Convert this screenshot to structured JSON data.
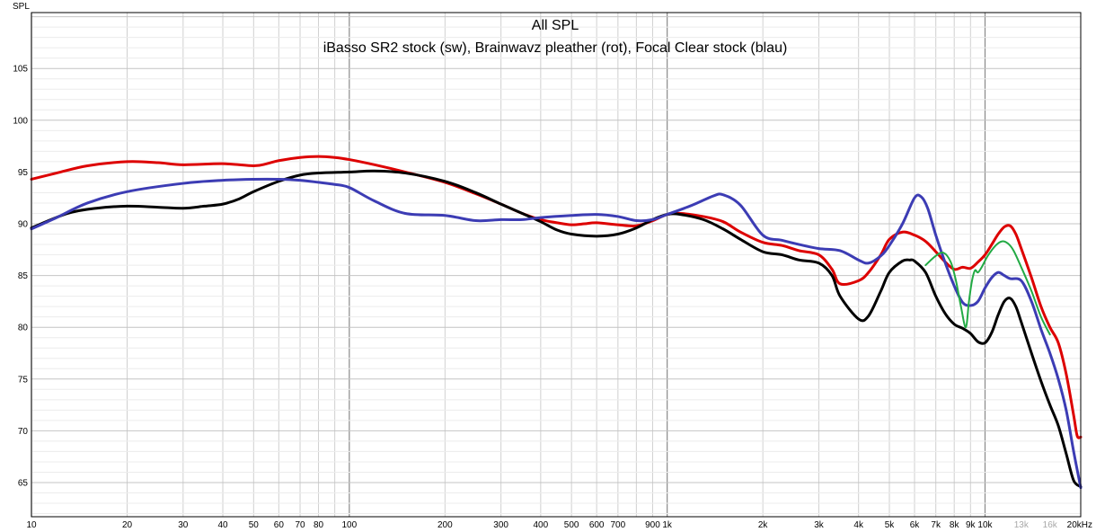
{
  "chart_data": {
    "type": "line",
    "title": "All SPL",
    "subtitle": "iBasso SR2 stock (sw), Brainwavz pleather (rot), Focal Clear stock (blau)",
    "ylabel": "SPL",
    "xlabel": "",
    "x_scale": "log",
    "xlim": [
      10,
      20000
    ],
    "ylim": [
      61.7,
      110.4
    ],
    "grid": true,
    "legend": "none",
    "y_ticks": [
      65,
      70,
      75,
      80,
      85,
      90,
      95,
      100,
      105
    ],
    "x_ticks": [
      {
        "value": 10,
        "label": "10"
      },
      {
        "value": 20,
        "label": "20"
      },
      {
        "value": 30,
        "label": "30"
      },
      {
        "value": 40,
        "label": "40"
      },
      {
        "value": 50,
        "label": "50"
      },
      {
        "value": 60,
        "label": "60"
      },
      {
        "value": 70,
        "label": "70"
      },
      {
        "value": 80,
        "label": "80"
      },
      {
        "value": 100,
        "label": "100"
      },
      {
        "value": 200,
        "label": "200"
      },
      {
        "value": 300,
        "label": "300"
      },
      {
        "value": 400,
        "label": "400"
      },
      {
        "value": 500,
        "label": "500"
      },
      {
        "value": 600,
        "label": "600"
      },
      {
        "value": 700,
        "label": "700"
      },
      {
        "value": 900,
        "label": "900"
      },
      {
        "value": 1000,
        "label": "1k"
      },
      {
        "value": 2000,
        "label": "2k"
      },
      {
        "value": 3000,
        "label": "3k"
      },
      {
        "value": 4000,
        "label": "4k"
      },
      {
        "value": 5000,
        "label": "5k"
      },
      {
        "value": 6000,
        "label": "6k"
      },
      {
        "value": 7000,
        "label": "7k"
      },
      {
        "value": 8000,
        "label": "8k"
      },
      {
        "value": 9000,
        "label": "9k"
      },
      {
        "value": 10000,
        "label": "10k"
      },
      {
        "value": 13000,
        "label": "13k",
        "faded": true
      },
      {
        "value": 16000,
        "label": "16k",
        "faded": true
      },
      {
        "value": 20000,
        "label": "20kHz"
      }
    ],
    "series": [
      {
        "color": "#dd0000",
        "points": [
          [
            10,
            94.3
          ],
          [
            12,
            94.9
          ],
          [
            15,
            95.6
          ],
          [
            20,
            96.0
          ],
          [
            25,
            95.9
          ],
          [
            30,
            95.7
          ],
          [
            40,
            95.8
          ],
          [
            50,
            95.6
          ],
          [
            55,
            95.8
          ],
          [
            60,
            96.1
          ],
          [
            70,
            96.4
          ],
          [
            80,
            96.5
          ],
          [
            90,
            96.4
          ],
          [
            100,
            96.2
          ],
          [
            120,
            95.7
          ],
          [
            150,
            95.0
          ],
          [
            200,
            94.0
          ],
          [
            250,
            92.9
          ],
          [
            300,
            91.9
          ],
          [
            350,
            91.0
          ],
          [
            400,
            90.4
          ],
          [
            450,
            90.1
          ],
          [
            500,
            89.9
          ],
          [
            550,
            90.0
          ],
          [
            600,
            90.1
          ],
          [
            700,
            89.9
          ],
          [
            800,
            89.8
          ],
          [
            900,
            90.3
          ],
          [
            1000,
            90.9
          ],
          [
            1100,
            91.0
          ],
          [
            1300,
            90.7
          ],
          [
            1500,
            90.2
          ],
          [
            1700,
            89.2
          ],
          [
            2000,
            88.2
          ],
          [
            2300,
            87.9
          ],
          [
            2600,
            87.4
          ],
          [
            3000,
            87.0
          ],
          [
            3300,
            85.6
          ],
          [
            3500,
            84.2
          ],
          [
            4000,
            84.5
          ],
          [
            4300,
            85.3
          ],
          [
            4700,
            87.0
          ],
          [
            5000,
            88.5
          ],
          [
            5500,
            89.2
          ],
          [
            6000,
            88.9
          ],
          [
            6500,
            88.3
          ],
          [
            7000,
            87.3
          ],
          [
            7500,
            86.3
          ],
          [
            8000,
            85.6
          ],
          [
            8500,
            85.8
          ],
          [
            9000,
            85.7
          ],
          [
            9500,
            86.3
          ],
          [
            10000,
            87.0
          ],
          [
            10500,
            88.0
          ],
          [
            11000,
            89.0
          ],
          [
            11500,
            89.7
          ],
          [
            12000,
            89.8
          ],
          [
            12500,
            89.0
          ],
          [
            13000,
            87.6
          ],
          [
            14000,
            84.8
          ],
          [
            15000,
            82.0
          ],
          [
            16000,
            80.0
          ],
          [
            17000,
            78.5
          ],
          [
            18000,
            75.5
          ],
          [
            19000,
            71.5
          ],
          [
            19500,
            69.5
          ],
          [
            20000,
            69.4
          ]
        ]
      },
      {
        "color": "#000000",
        "points": [
          [
            10,
            89.6
          ],
          [
            13,
            91.0
          ],
          [
            16,
            91.5
          ],
          [
            20,
            91.7
          ],
          [
            25,
            91.6
          ],
          [
            30,
            91.5
          ],
          [
            35,
            91.7
          ],
          [
            40,
            91.9
          ],
          [
            45,
            92.4
          ],
          [
            50,
            93.1
          ],
          [
            60,
            94.1
          ],
          [
            70,
            94.7
          ],
          [
            80,
            94.9
          ],
          [
            100,
            95.0
          ],
          [
            120,
            95.1
          ],
          [
            150,
            94.9
          ],
          [
            200,
            94.1
          ],
          [
            250,
            93.0
          ],
          [
            300,
            91.9
          ],
          [
            350,
            91.0
          ],
          [
            400,
            90.2
          ],
          [
            450,
            89.4
          ],
          [
            500,
            89.0
          ],
          [
            600,
            88.8
          ],
          [
            700,
            89.0
          ],
          [
            800,
            89.6
          ],
          [
            900,
            90.4
          ],
          [
            1000,
            90.9
          ],
          [
            1100,
            90.9
          ],
          [
            1300,
            90.4
          ],
          [
            1500,
            89.5
          ],
          [
            1700,
            88.5
          ],
          [
            2000,
            87.3
          ],
          [
            2300,
            87.0
          ],
          [
            2600,
            86.5
          ],
          [
            3000,
            86.2
          ],
          [
            3300,
            85.0
          ],
          [
            3500,
            83.0
          ],
          [
            4000,
            80.8
          ],
          [
            4300,
            81.1
          ],
          [
            4700,
            83.5
          ],
          [
            5000,
            85.3
          ],
          [
            5500,
            86.4
          ],
          [
            5800,
            86.5
          ],
          [
            6000,
            86.4
          ],
          [
            6500,
            85.3
          ],
          [
            7000,
            83.0
          ],
          [
            7500,
            81.3
          ],
          [
            8000,
            80.3
          ],
          [
            8500,
            79.9
          ],
          [
            9000,
            79.4
          ],
          [
            9500,
            78.6
          ],
          [
            10000,
            78.5
          ],
          [
            10500,
            79.5
          ],
          [
            11000,
            81.2
          ],
          [
            11500,
            82.5
          ],
          [
            12000,
            82.8
          ],
          [
            12500,
            82.0
          ],
          [
            13000,
            80.5
          ],
          [
            14000,
            77.5
          ],
          [
            15000,
            74.8
          ],
          [
            16000,
            72.5
          ],
          [
            17000,
            70.5
          ],
          [
            18000,
            67.8
          ],
          [
            19000,
            65.2
          ],
          [
            20000,
            64.6
          ]
        ]
      },
      {
        "color": "#3c3cb4",
        "points": [
          [
            10,
            89.5
          ],
          [
            12,
            90.6
          ],
          [
            15,
            92.0
          ],
          [
            20,
            93.1
          ],
          [
            30,
            93.9
          ],
          [
            40,
            94.2
          ],
          [
            50,
            94.3
          ],
          [
            60,
            94.3
          ],
          [
            70,
            94.2
          ],
          [
            80,
            94.0
          ],
          [
            90,
            93.8
          ],
          [
            100,
            93.5
          ],
          [
            120,
            92.2
          ],
          [
            150,
            91.0
          ],
          [
            200,
            90.8
          ],
          [
            250,
            90.3
          ],
          [
            300,
            90.4
          ],
          [
            350,
            90.4
          ],
          [
            400,
            90.6
          ],
          [
            500,
            90.8
          ],
          [
            600,
            90.9
          ],
          [
            700,
            90.7
          ],
          [
            800,
            90.3
          ],
          [
            900,
            90.4
          ],
          [
            1000,
            90.9
          ],
          [
            1200,
            91.8
          ],
          [
            1400,
            92.7
          ],
          [
            1500,
            92.8
          ],
          [
            1700,
            91.8
          ],
          [
            2000,
            88.9
          ],
          [
            2300,
            88.4
          ],
          [
            2600,
            88.0
          ],
          [
            3000,
            87.6
          ],
          [
            3500,
            87.4
          ],
          [
            4000,
            86.5
          ],
          [
            4300,
            86.2
          ],
          [
            4700,
            86.9
          ],
          [
            5000,
            87.9
          ],
          [
            5500,
            90.0
          ],
          [
            6000,
            92.5
          ],
          [
            6300,
            92.6
          ],
          [
            6600,
            91.5
          ],
          [
            7000,
            88.9
          ],
          [
            7500,
            86.2
          ],
          [
            8000,
            84.0
          ],
          [
            8500,
            82.4
          ],
          [
            9000,
            82.1
          ],
          [
            9500,
            82.5
          ],
          [
            10000,
            83.8
          ],
          [
            10500,
            84.8
          ],
          [
            11000,
            85.3
          ],
          [
            11500,
            85.0
          ],
          [
            12000,
            84.7
          ],
          [
            13000,
            84.5
          ],
          [
            14000,
            82.5
          ],
          [
            15000,
            79.8
          ],
          [
            16000,
            77.5
          ],
          [
            17000,
            75.0
          ],
          [
            18000,
            72.0
          ],
          [
            19000,
            68.0
          ],
          [
            20000,
            64.5
          ]
        ]
      },
      {
        "color": "#22aa44",
        "points": [
          [
            6500,
            86.0
          ],
          [
            7000,
            86.9
          ],
          [
            7400,
            87.2
          ],
          [
            7800,
            86.3
          ],
          [
            8100,
            84.5
          ],
          [
            8400,
            82.0
          ],
          [
            8700,
            80.0
          ],
          [
            8900,
            82.5
          ],
          [
            9100,
            84.5
          ],
          [
            9300,
            85.5
          ],
          [
            9500,
            85.3
          ],
          [
            9800,
            85.9
          ],
          [
            10200,
            86.9
          ],
          [
            10800,
            87.9
          ],
          [
            11300,
            88.3
          ],
          [
            11800,
            88.1
          ],
          [
            12300,
            87.4
          ],
          [
            13000,
            85.8
          ],
          [
            14000,
            83.5
          ],
          [
            15000,
            81.0
          ],
          [
            16000,
            79.3
          ]
        ]
      }
    ]
  }
}
